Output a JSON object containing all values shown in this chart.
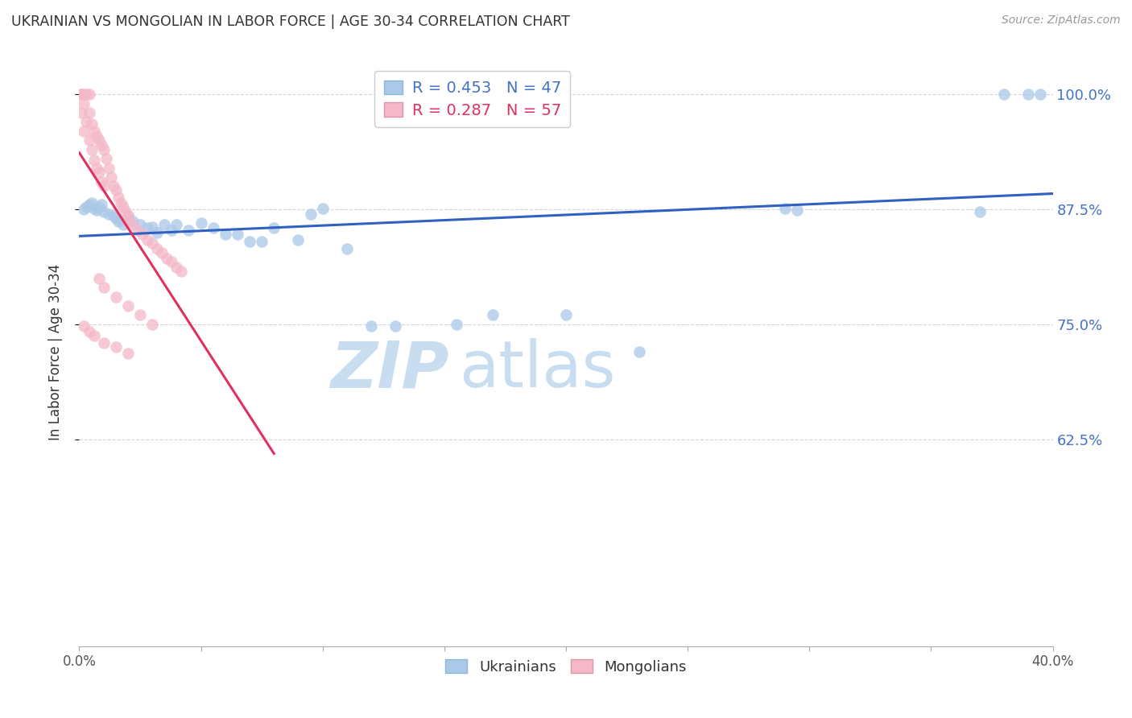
{
  "title": "UKRAINIAN VS MONGOLIAN IN LABOR FORCE | AGE 30-34 CORRELATION CHART",
  "source": "Source: ZipAtlas.com",
  "ylabel": "In Labor Force | Age 30-34",
  "xlim": [
    0.0,
    0.4
  ],
  "ylim": [
    0.4,
    1.04
  ],
  "xticks": [
    0.0,
    0.05,
    0.1,
    0.15,
    0.2,
    0.25,
    0.3,
    0.35,
    0.4
  ],
  "xticklabels": [
    "0.0%",
    "",
    "",
    "",
    "",
    "",
    "",
    "",
    "40.0%"
  ],
  "yticks_right": [
    0.625,
    0.75,
    0.875,
    1.0
  ],
  "ytick_labels_right": [
    "62.5%",
    "75.0%",
    "87.5%",
    "100.0%"
  ],
  "legend_blue_r": "R = 0.453",
  "legend_blue_n": "N = 47",
  "legend_pink_r": "R = 0.287",
  "legend_pink_n": "N = 57",
  "blue_color": "#aac8e8",
  "pink_color": "#f4b8c8",
  "blue_line_color": "#3060c0",
  "pink_line_color": "#e03060",
  "blue_scatter_x": [
    0.002,
    0.003,
    0.004,
    0.005,
    0.006,
    0.007,
    0.008,
    0.009,
    0.01,
    0.012,
    0.014,
    0.015,
    0.016,
    0.018,
    0.02,
    0.022,
    0.025,
    0.028,
    0.03,
    0.032,
    0.035,
    0.038,
    0.04,
    0.045,
    0.05,
    0.055,
    0.06,
    0.065,
    0.07,
    0.075,
    0.08,
    0.09,
    0.095,
    0.1,
    0.11,
    0.12,
    0.13,
    0.155,
    0.17,
    0.2,
    0.23,
    0.29,
    0.295,
    0.37,
    0.38,
    0.39,
    0.395
  ],
  "blue_scatter_y": [
    0.875,
    0.878,
    0.88,
    0.882,
    0.876,
    0.874,
    0.878,
    0.88,
    0.872,
    0.87,
    0.868,
    0.865,
    0.862,
    0.858,
    0.868,
    0.862,
    0.858,
    0.855,
    0.856,
    0.85,
    0.858,
    0.852,
    0.858,
    0.852,
    0.86,
    0.855,
    0.848,
    0.848,
    0.84,
    0.84,
    0.855,
    0.842,
    0.87,
    0.876,
    0.832,
    0.748,
    0.748,
    0.75,
    0.76,
    0.76,
    0.72,
    0.876,
    0.874,
    0.872,
    1.0,
    1.0,
    1.0
  ],
  "pink_scatter_x": [
    0.001,
    0.001,
    0.001,
    0.002,
    0.002,
    0.002,
    0.003,
    0.003,
    0.004,
    0.004,
    0.004,
    0.005,
    0.005,
    0.006,
    0.006,
    0.007,
    0.007,
    0.008,
    0.008,
    0.009,
    0.009,
    0.01,
    0.01,
    0.011,
    0.012,
    0.013,
    0.014,
    0.015,
    0.016,
    0.017,
    0.018,
    0.019,
    0.02,
    0.02,
    0.022,
    0.024,
    0.026,
    0.028,
    0.03,
    0.032,
    0.034,
    0.036,
    0.038,
    0.04,
    0.042,
    0.008,
    0.01,
    0.015,
    0.02,
    0.025,
    0.03,
    0.002,
    0.004,
    0.006,
    0.01,
    0.015,
    0.02
  ],
  "pink_scatter_y": [
    1.0,
    1.0,
    0.98,
    1.0,
    0.99,
    0.96,
    1.0,
    0.97,
    1.0,
    0.98,
    0.95,
    0.968,
    0.94,
    0.96,
    0.928,
    0.955,
    0.92,
    0.95,
    0.915,
    0.945,
    0.905,
    0.94,
    0.9,
    0.93,
    0.92,
    0.91,
    0.9,
    0.896,
    0.888,
    0.882,
    0.878,
    0.872,
    0.868,
    0.862,
    0.858,
    0.852,
    0.848,
    0.842,
    0.838,
    0.832,
    0.828,
    0.822,
    0.818,
    0.812,
    0.808,
    0.8,
    0.79,
    0.78,
    0.77,
    0.76,
    0.75,
    0.748,
    0.742,
    0.738,
    0.73,
    0.725,
    0.718
  ],
  "watermark_zip": "ZIP",
  "watermark_atlas": "atlas",
  "watermark_color_zip": "#c8ddf0",
  "watermark_color_atlas": "#c8ddf0",
  "background_color": "#ffffff",
  "grid_color": "#cccccc",
  "right_axis_color": "#4472c4"
}
